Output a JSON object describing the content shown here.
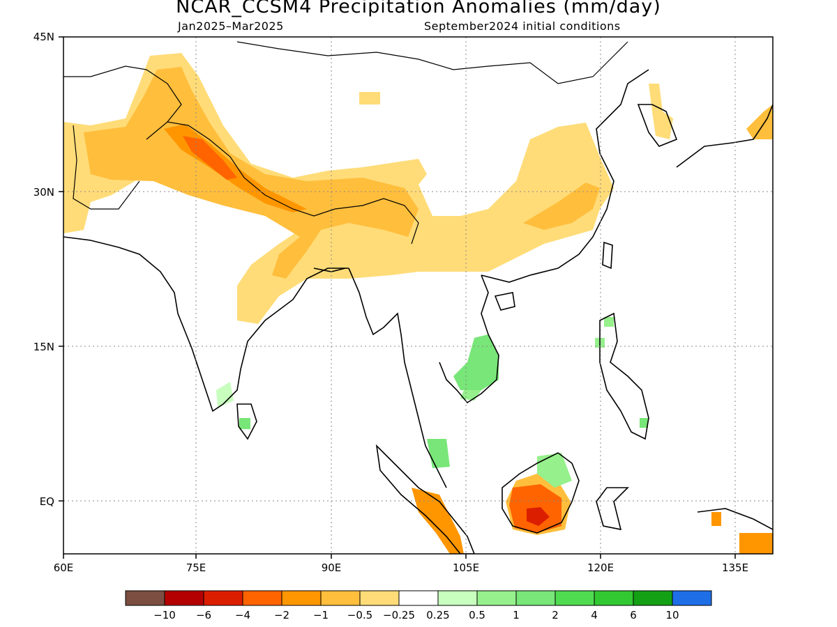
{
  "title": "NCAR_CCSM4 Precipitation Anomalies (mm/day)",
  "period": "Jan2025–Mar2025",
  "initial_conditions": "September2024 initial conditions",
  "axes": {
    "lat_labels": [
      "45N",
      "30N",
      "15N",
      "EQ"
    ],
    "lon_labels": [
      "60E",
      "75E",
      "90E",
      "105E",
      "120E",
      "135E"
    ]
  },
  "colorbar": {
    "colors": [
      "#7b4e41",
      "#b40000",
      "#dc1e00",
      "#ff6400",
      "#ff9600",
      "#ffbe3c",
      "#ffdc78",
      "#ffffff",
      "#c8ffbe",
      "#96f08c",
      "#78e678",
      "#50dc50",
      "#32c832",
      "#14a014",
      "#1e6ee6"
    ],
    "labels": [
      "−10",
      "−6",
      "−4",
      "−2",
      "−1",
      "−0.5",
      "−0.25",
      "0.25",
      "0.5",
      "1",
      "2",
      "4",
      "6",
      "10"
    ]
  }
}
